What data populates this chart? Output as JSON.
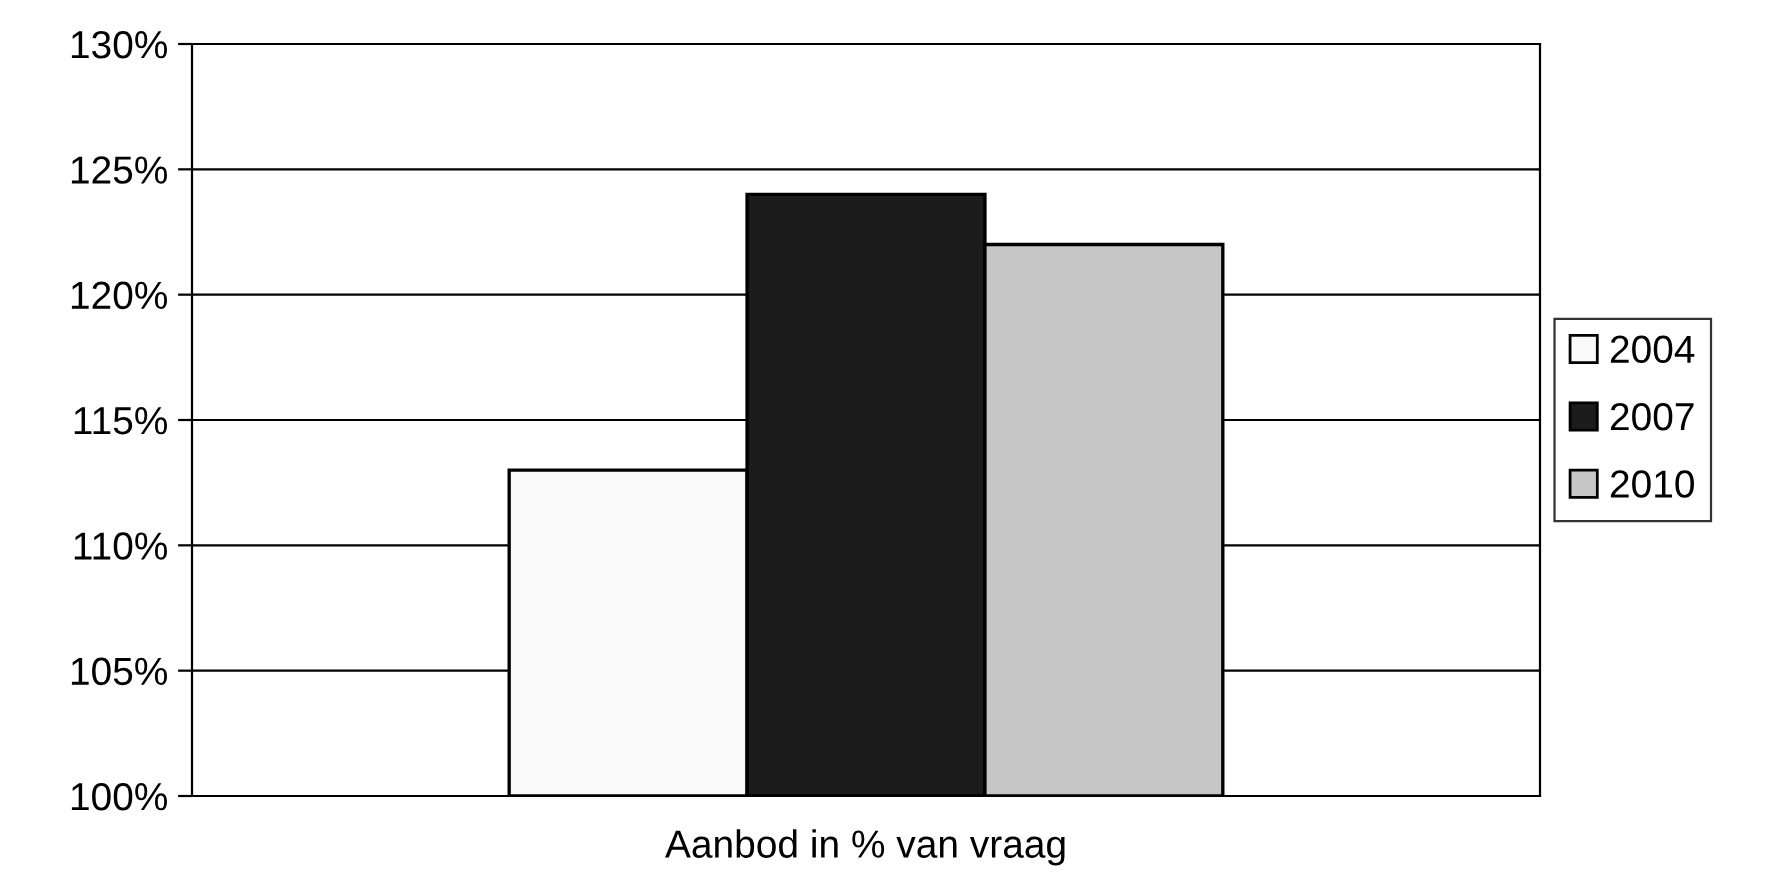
{
  "chart_data": {
    "type": "bar",
    "categories": [
      "Aanbod in % van vraag"
    ],
    "series": [
      {
        "name": "2004",
        "color": "#fafafa",
        "values": [
          113
        ]
      },
      {
        "name": "2007",
        "color": "#1c1c1c",
        "values": [
          124
        ]
      },
      {
        "name": "2010",
        "color": "#c6c6c6",
        "values": [
          122
        ]
      }
    ],
    "ylim": [
      100,
      130
    ],
    "yticks": [
      {
        "value": 100,
        "label": "100%"
      },
      {
        "value": 105,
        "label": "105%"
      },
      {
        "value": 110,
        "label": "110%"
      },
      {
        "value": 115,
        "label": "115%"
      },
      {
        "value": 120,
        "label": "120%"
      },
      {
        "value": 125,
        "label": "125%"
      },
      {
        "value": 130,
        "label": "130%"
      }
    ],
    "grid": "y",
    "legend": "right"
  }
}
